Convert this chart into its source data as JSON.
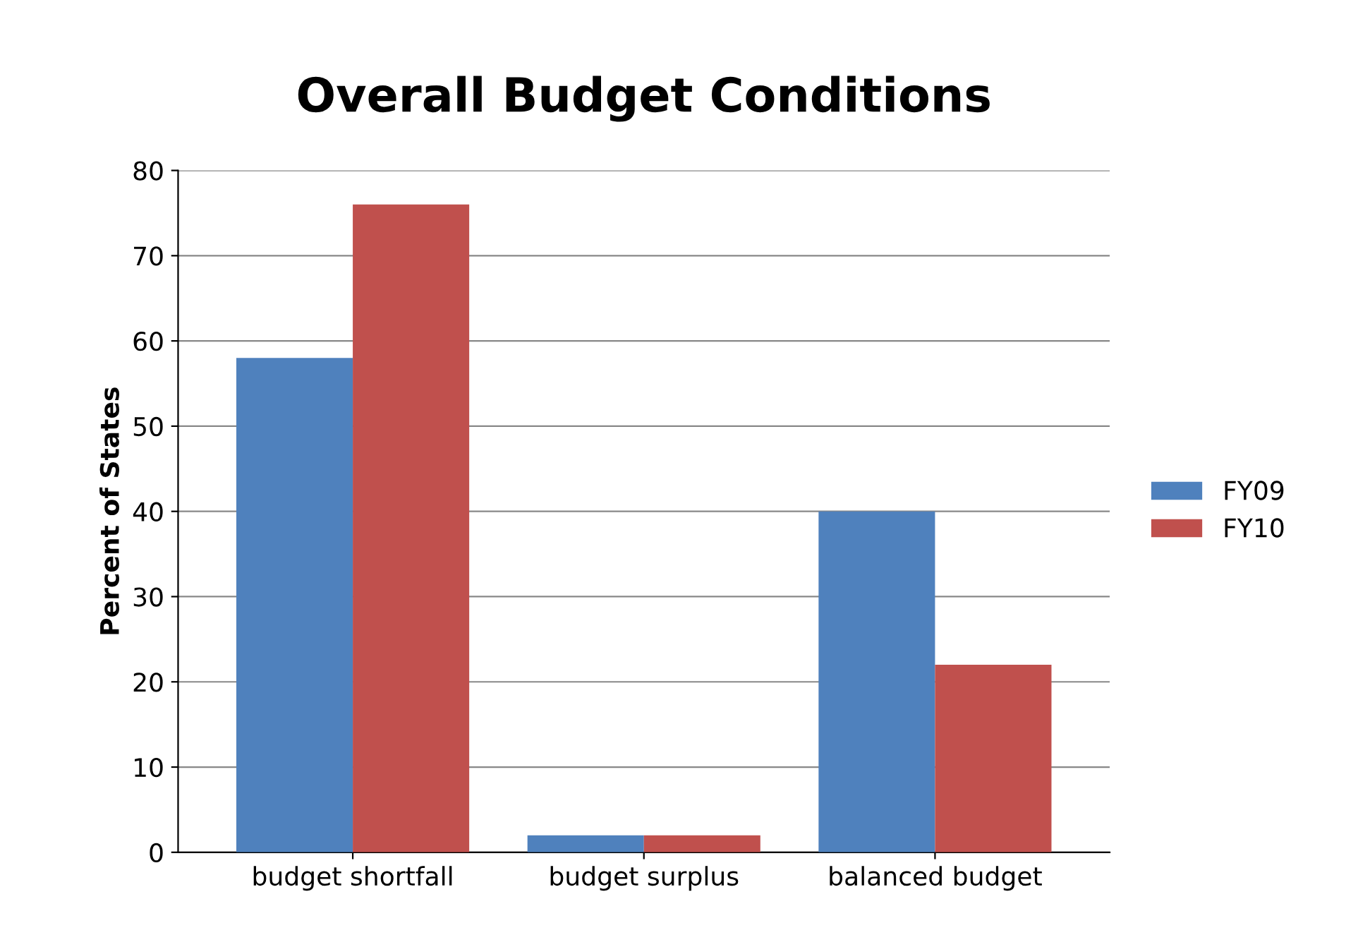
{
  "chart_data": {
    "type": "bar",
    "title": "Overall Budget Conditions",
    "ylabel": "Percent of States",
    "categories": [
      "budget shortfall",
      "budget surplus",
      "balanced budget"
    ],
    "series": [
      {
        "name": "FY09",
        "color": "#4f81bd",
        "values": [
          58,
          2,
          40
        ]
      },
      {
        "name": "FY10",
        "color": "#c0504d",
        "values": [
          76,
          2,
          22
        ]
      }
    ],
    "ylim": [
      0,
      80
    ],
    "yticks": [
      0,
      10,
      20,
      30,
      40,
      50,
      60,
      70,
      80
    ],
    "grid": "y",
    "legend": "right"
  }
}
